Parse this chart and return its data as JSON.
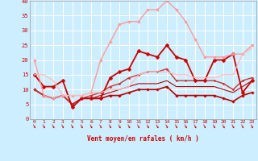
{
  "xlabel": "Vent moyen/en rafales ( km/h )",
  "background_color": "#cceeff",
  "grid_color": "#ffffff",
  "x": [
    0,
    1,
    2,
    3,
    4,
    5,
    6,
    7,
    8,
    9,
    10,
    11,
    12,
    13,
    14,
    15,
    16,
    17,
    18,
    19,
    20,
    21,
    22,
    23
  ],
  "ylim": [
    0,
    40
  ],
  "yticks": [
    0,
    5,
    10,
    15,
    20,
    25,
    30,
    35,
    40
  ],
  "series": [
    {
      "y": [
        10,
        8,
        7,
        8,
        5,
        7,
        7,
        7,
        8,
        8,
        9,
        10,
        10,
        10,
        11,
        8,
        8,
        8,
        8,
        8,
        7,
        6,
        8,
        9
      ],
      "color": "#bb0000",
      "lw": 1.2,
      "marker": "D",
      "ms": 1.8
    },
    {
      "y": [
        10,
        8,
        7,
        8,
        5,
        7,
        7,
        8,
        9,
        10,
        11,
        12,
        12,
        12,
        13,
        11,
        11,
        11,
        11,
        11,
        10,
        9,
        11,
        13
      ],
      "color": "#bb0000",
      "lw": 0.8,
      "marker": null,
      "ms": 0
    },
    {
      "y": [
        10,
        8,
        7,
        8,
        5,
        7,
        8,
        9,
        11,
        12,
        14,
        15,
        16,
        16,
        17,
        13,
        13,
        13,
        13,
        13,
        12,
        10,
        13,
        14
      ],
      "color": "#cc3333",
      "lw": 1.0,
      "marker": "D",
      "ms": 1.5
    },
    {
      "y": [
        15,
        11,
        11,
        13,
        4,
        7,
        7,
        7,
        14,
        16,
        17,
        23,
        22,
        21,
        25,
        21,
        20,
        13,
        13,
        20,
        20,
        22,
        9,
        13
      ],
      "color": "#cc0000",
      "lw": 1.3,
      "marker": "D",
      "ms": 2.5
    },
    {
      "y": [
        20,
        8,
        7,
        8,
        8,
        8,
        9,
        20,
        26,
        32,
        33,
        33,
        37,
        37,
        40,
        37,
        33,
        27,
        21,
        21,
        21,
        22,
        22,
        25
      ],
      "color": "#ff9999",
      "lw": 1.0,
      "marker": "D",
      "ms": 1.8
    },
    {
      "y": [
        15,
        15,
        13,
        8,
        8,
        8,
        9,
        9,
        10,
        10,
        11,
        15,
        16,
        16,
        16,
        15,
        15,
        14,
        14,
        14,
        15,
        15,
        22,
        24
      ],
      "color": "#ffbbbb",
      "lw": 0.9,
      "marker": null,
      "ms": 0
    }
  ]
}
